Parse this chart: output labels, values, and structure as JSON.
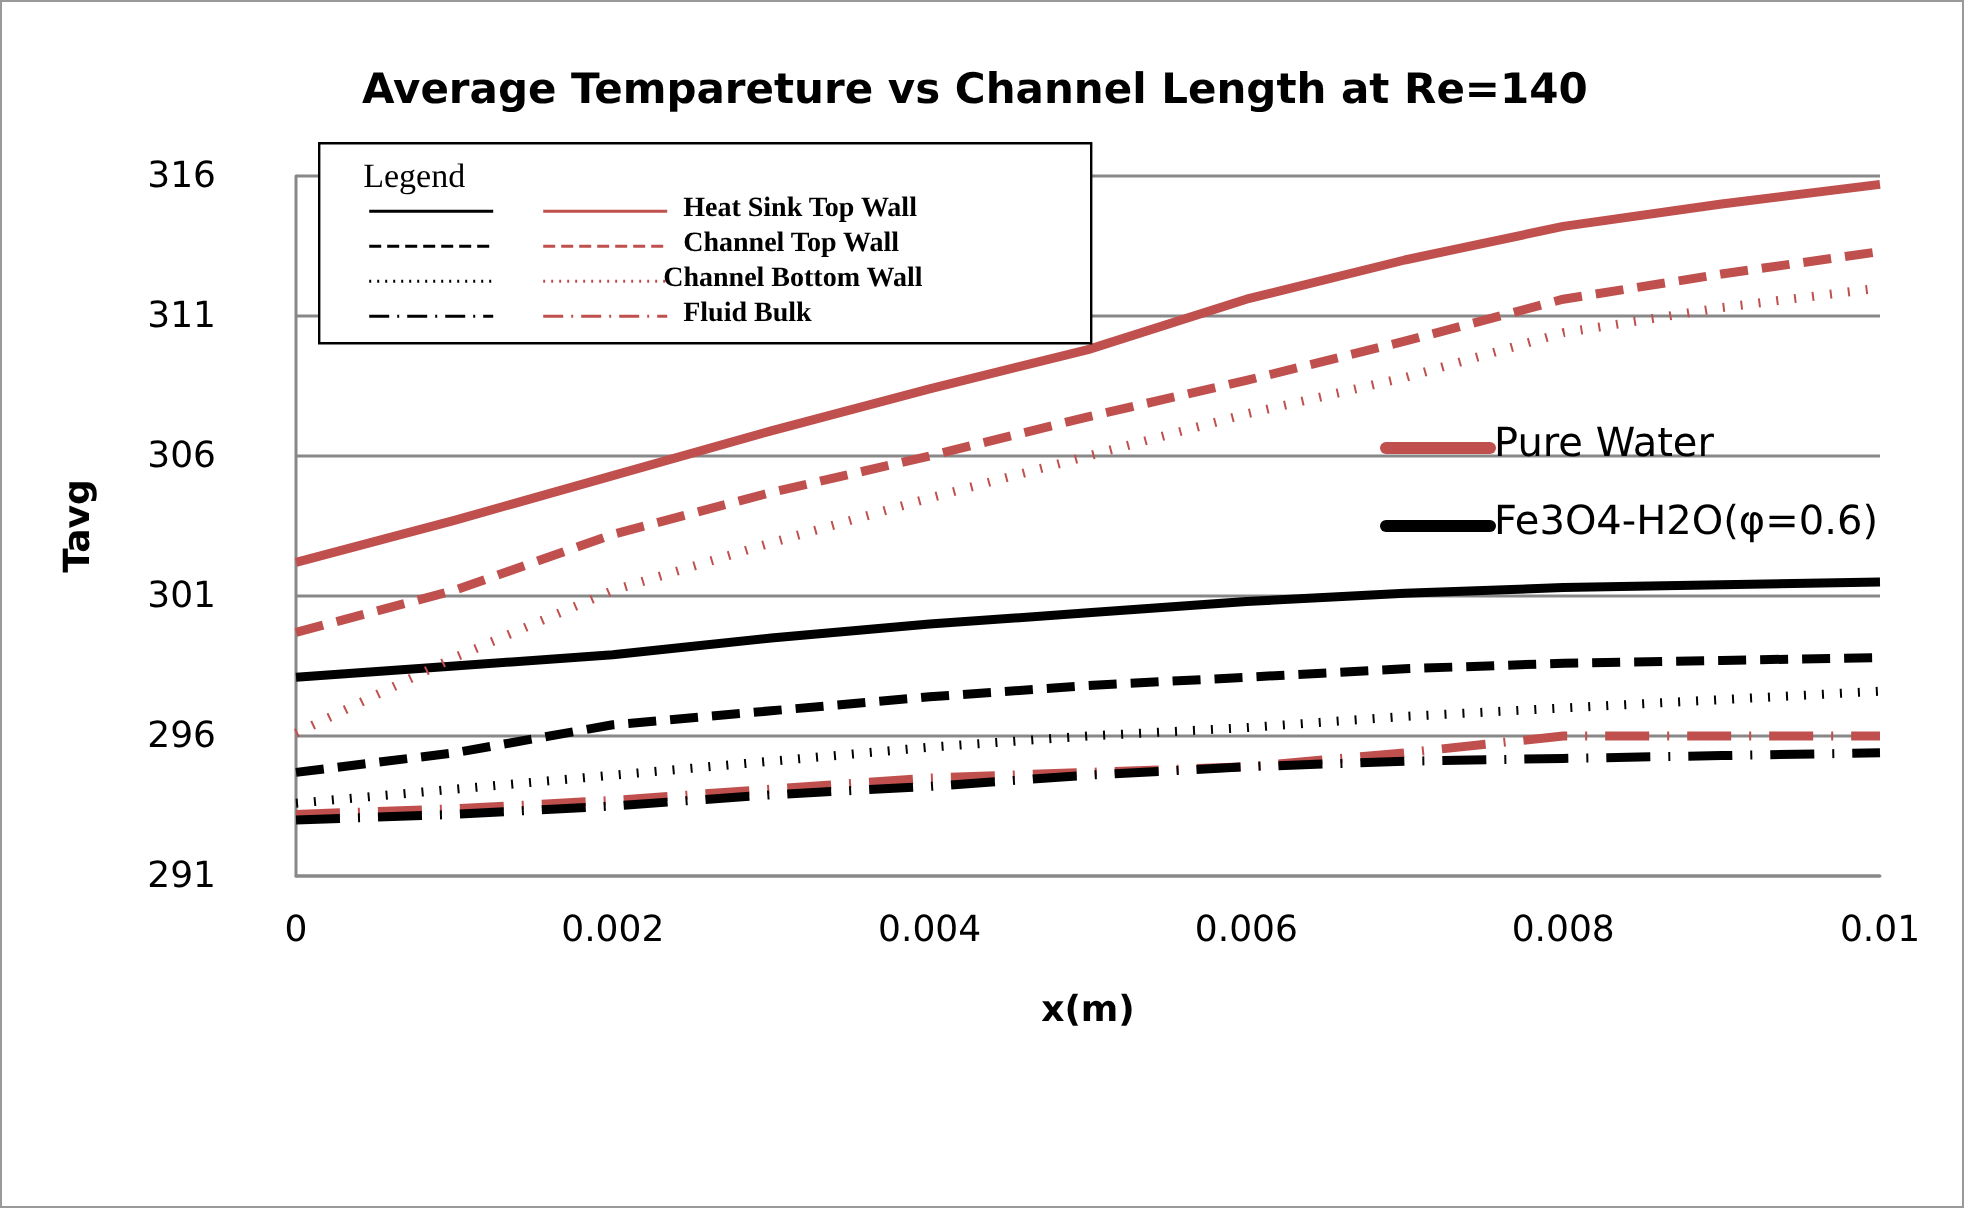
{
  "chart_data": {
    "type": "line",
    "title": "Average Tempareture vs Channel Length at Re=140",
    "xlabel": "x(m)",
    "ylabel": "Tavg",
    "legend_title": "Legend",
    "legend": "top left",
    "grid": "y",
    "marker": "none",
    "xlim": [
      0,
      0.01
    ],
    "xticks": [
      0,
      0.002,
      0.004,
      0.006,
      0.008,
      0.01
    ],
    "ylim": [
      291,
      316
    ],
    "yticks": [
      291,
      296,
      301,
      306,
      311,
      316
    ],
    "x": [
      0,
      0.001,
      0.002,
      0.003,
      0.004,
      0.005,
      0.006,
      0.007,
      0.008,
      0.009,
      0.01
    ],
    "annotations": [
      "Pure Water",
      "Fe3O4-H2O(φ=0.6)"
    ],
    "series": [
      {
        "name": "Heat Sink Top Wall",
        "color": "#c0504d",
        "line_style": "solid",
        "values": [
          302.2,
          303.7,
          305.3,
          306.9,
          308.4,
          309.8,
          311.6,
          313.0,
          314.2,
          315.0,
          315.7
        ]
      },
      {
        "color": "#000000",
        "line_style": "solid",
        "values": [
          298.1,
          298.5,
          298.9,
          299.5,
          300.0,
          300.4,
          300.8,
          301.1,
          301.3,
          301.4,
          301.5
        ]
      },
      {
        "name": "Channel Top Wall",
        "color": "#c0504d",
        "line_style": "dashed",
        "values": [
          299.7,
          301.2,
          303.2,
          304.7,
          306.0,
          307.4,
          308.7,
          310.1,
          311.6,
          312.5,
          313.3
        ]
      },
      {
        "color": "#000000",
        "line_style": "dashed",
        "values": [
          294.7,
          295.4,
          296.4,
          296.9,
          297.4,
          297.8,
          298.1,
          298.4,
          298.6,
          298.7,
          298.8
        ]
      },
      {
        "name": "Channel Bottom Wall",
        "color": "#c0504d",
        "line_style": "dotted",
        "values": [
          296.1,
          298.8,
          301.2,
          302.9,
          304.5,
          306.0,
          307.5,
          308.8,
          310.4,
          311.3,
          312.0
        ]
      },
      {
        "color": "#000000",
        "line_style": "dotted",
        "values": [
          293.6,
          294.1,
          294.6,
          295.1,
          295.6,
          296.0,
          296.3,
          296.7,
          297.0,
          297.3,
          297.6
        ]
      },
      {
        "name": "Fluid Bulk",
        "color": "#c0504d",
        "line_style": "dashdot",
        "values": [
          293.2,
          293.4,
          293.7,
          294.1,
          294.5,
          294.7,
          294.9,
          295.4,
          296.0,
          296.0,
          296.0
        ]
      },
      {
        "color": "#000000",
        "line_style": "dashdot",
        "values": [
          293.0,
          293.2,
          293.5,
          293.9,
          294.2,
          294.6,
          294.9,
          295.1,
          295.2,
          295.3,
          295.4
        ]
      }
    ]
  }
}
